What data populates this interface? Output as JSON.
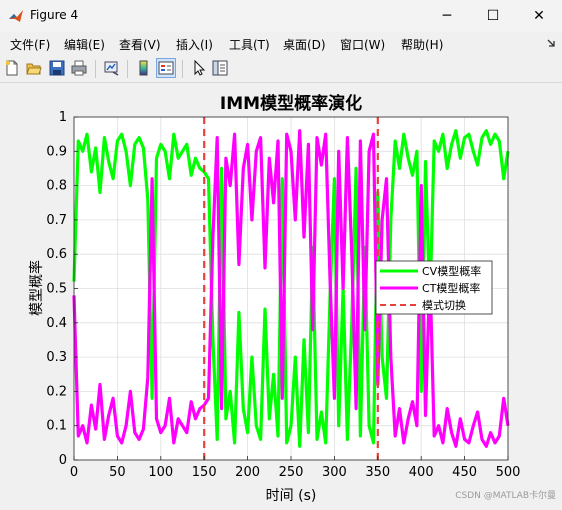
{
  "window": {
    "title": "Figure 4",
    "minimize": "─",
    "maximize": "☐",
    "close": "✕"
  },
  "menu": [
    "文件(F)",
    "编辑(E)",
    "查看(V)",
    "插入(I)",
    "工具(T)",
    "桌面(D)",
    "窗口(W)",
    "帮助(H)"
  ],
  "toolbar_icons": [
    "new-file-icon",
    "open-folder-icon",
    "save-icon",
    "print-icon",
    "link-plot-icon",
    "colorbar-icon",
    "legend-icon",
    "pointer-icon",
    "property-editor-icon"
  ],
  "watermark": "CSDN @MATLAB卡尔曼",
  "colors": {
    "cv": "#00ff00",
    "ct": "#ff00ff",
    "switch": "#e8413c"
  },
  "chart_data": {
    "type": "line",
    "title": "IMM模型概率演化",
    "xlabel": "时间 (s)",
    "ylabel": "模型概率",
    "xlim": [
      0,
      500
    ],
    "ylim": [
      0,
      1
    ],
    "xticks": [
      "0",
      "50",
      "100",
      "150",
      "200",
      "250",
      "300",
      "350",
      "400",
      "450",
      "500"
    ],
    "yticks": [
      "0",
      "0.1",
      "0.2",
      "0.3",
      "0.4",
      "0.5",
      "0.6",
      "0.7",
      "0.8",
      "0.9",
      "1"
    ],
    "grid": true,
    "legend_position": "right",
    "legend": [
      "CV模型概率",
      "CT模型概率",
      "模式切换"
    ],
    "switch_lines": [
      150,
      350
    ],
    "x": [
      0,
      5,
      10,
      15,
      20,
      25,
      30,
      35,
      40,
      45,
      50,
      55,
      60,
      65,
      70,
      75,
      80,
      85,
      90,
      95,
      100,
      105,
      110,
      115,
      120,
      125,
      130,
      135,
      140,
      145,
      150,
      155,
      160,
      165,
      170,
      175,
      180,
      185,
      190,
      195,
      200,
      205,
      210,
      215,
      220,
      225,
      230,
      235,
      240,
      245,
      250,
      255,
      260,
      265,
      270,
      275,
      280,
      285,
      290,
      295,
      300,
      305,
      310,
      315,
      320,
      325,
      330,
      335,
      340,
      345,
      350,
      355,
      360,
      365,
      370,
      375,
      380,
      385,
      390,
      395,
      400,
      405,
      410,
      415,
      420,
      425,
      430,
      435,
      440,
      445,
      450,
      455,
      460,
      465,
      470,
      475,
      480,
      485,
      490,
      495,
      500
    ],
    "series": [
      {
        "name": "CV模型概率",
        "values": [
          0.52,
          0.93,
          0.9,
          0.95,
          0.84,
          0.91,
          0.78,
          0.94,
          0.87,
          0.82,
          0.93,
          0.95,
          0.9,
          0.8,
          0.92,
          0.94,
          0.91,
          0.76,
          0.18,
          0.88,
          0.92,
          0.9,
          0.82,
          0.95,
          0.88,
          0.9,
          0.92,
          0.83,
          0.88,
          0.85,
          0.84,
          0.82,
          0.35,
          0.06,
          0.85,
          0.12,
          0.2,
          0.05,
          0.43,
          0.15,
          0.08,
          0.3,
          0.1,
          0.06,
          0.44,
          0.12,
          0.25,
          0.07,
          0.82,
          0.05,
          0.1,
          0.3,
          0.04,
          0.35,
          0.08,
          0.62,
          0.06,
          0.14,
          0.05,
          0.48,
          0.82,
          0.1,
          0.5,
          0.06,
          0.4,
          0.85,
          0.07,
          0.62,
          0.1,
          0.05,
          0.78,
          0.3,
          0.18,
          0.7,
          0.93,
          0.85,
          0.95,
          0.88,
          0.83,
          0.9,
          0.2,
          0.87,
          0.45,
          0.93,
          0.9,
          0.95,
          0.85,
          0.92,
          0.96,
          0.88,
          0.94,
          0.95,
          0.9,
          0.86,
          0.94,
          0.96,
          0.92,
          0.95,
          0.93,
          0.82,
          0.9
        ]
      },
      {
        "name": "CT模型概率",
        "values": [
          0.48,
          0.07,
          0.1,
          0.05,
          0.16,
          0.09,
          0.22,
          0.06,
          0.13,
          0.18,
          0.07,
          0.05,
          0.1,
          0.2,
          0.08,
          0.06,
          0.09,
          0.24,
          0.82,
          0.12,
          0.08,
          0.1,
          0.18,
          0.05,
          0.12,
          0.1,
          0.08,
          0.17,
          0.12,
          0.15,
          0.16,
          0.18,
          0.65,
          0.94,
          0.15,
          0.88,
          0.8,
          0.95,
          0.57,
          0.85,
          0.92,
          0.7,
          0.9,
          0.94,
          0.56,
          0.88,
          0.75,
          0.93,
          0.18,
          0.95,
          0.9,
          0.7,
          0.96,
          0.65,
          0.92,
          0.38,
          0.94,
          0.86,
          0.95,
          0.52,
          0.18,
          0.9,
          0.5,
          0.94,
          0.6,
          0.15,
          0.93,
          0.38,
          0.9,
          0.95,
          0.22,
          0.7,
          0.82,
          0.3,
          0.07,
          0.15,
          0.05,
          0.12,
          0.17,
          0.1,
          0.8,
          0.13,
          0.55,
          0.07,
          0.1,
          0.05,
          0.15,
          0.08,
          0.04,
          0.12,
          0.06,
          0.05,
          0.1,
          0.14,
          0.06,
          0.04,
          0.08,
          0.05,
          0.07,
          0.18,
          0.1
        ]
      }
    ]
  }
}
